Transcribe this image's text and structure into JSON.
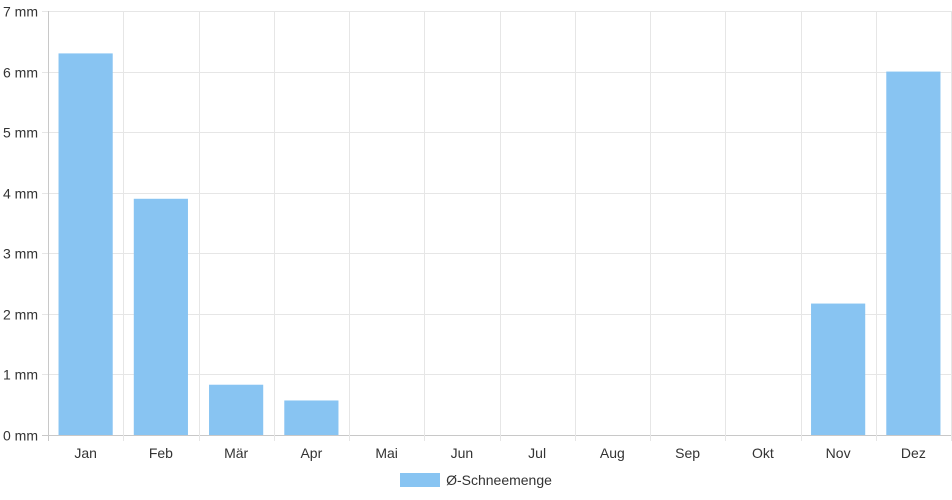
{
  "chart_data": {
    "type": "bar",
    "categories": [
      "Jan",
      "Feb",
      "Mär",
      "Apr",
      "Mai",
      "Jun",
      "Jul",
      "Aug",
      "Sep",
      "Okt",
      "Nov",
      "Dez"
    ],
    "series": [
      {
        "name": "Ø-Schneemenge",
        "values": [
          6.3,
          3.9,
          0.83,
          0.57,
          0,
          0,
          0,
          0,
          0,
          0,
          2.17,
          6.0
        ],
        "color": "#88c4f2"
      }
    ],
    "y_ticks": [
      "0 mm",
      "1 mm",
      "2 mm",
      "3 mm",
      "4 mm",
      "5 mm",
      "6 mm",
      "7 mm"
    ],
    "ylim": [
      0,
      7
    ],
    "grid": true,
    "legend_position": "bottom"
  }
}
